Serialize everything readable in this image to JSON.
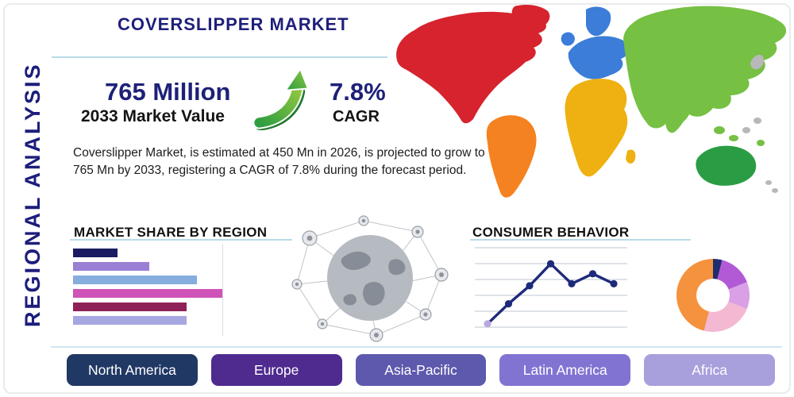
{
  "header": {
    "title": "COVERSLIPPER MARKET"
  },
  "side_label": "REGIONAL ANALYSIS",
  "stats": {
    "market_value": "765 Million",
    "market_value_label": "2033 Market Value",
    "cagr_value": "7.8%",
    "cagr_label": "CAGR"
  },
  "description": "Coverslipper Market, is estimated at 450 Mn in 2026, is projected to grow to 765 Mn by 2033, registering a CAGR of 7.8% during the forecast period.",
  "sections": {
    "market_share_title": "MARKET SHARE BY REGION",
    "consumer_behavior_title": "CONSUMER BEHAVIOR"
  },
  "regions": [
    {
      "label": "North America",
      "color": "#203864"
    },
    {
      "label": "Europe",
      "color": "#4f2a8f"
    },
    {
      "label": "Asia-Pacific",
      "color": "#5d59ad"
    },
    {
      "label": "Latin America",
      "color": "#8173d2"
    },
    {
      "label": "Africa",
      "color": "#a89fdd"
    }
  ],
  "map": {
    "colors": {
      "north-america": "#d6232e",
      "greenland": "#d6232e",
      "south-america": "#f58220",
      "europe": "#3b7dd8",
      "uk": "#3b7dd8",
      "scandinavia": "#3b7dd8",
      "africa": "#eeb111",
      "madagascar": "#eeb111",
      "middle-east": "#b8b8b8",
      "asia": "#76c043",
      "india": "#76c043",
      "australia": "#2a9d44",
      "islands-gray": "#b8b8b8",
      "islands-green": "#76c043"
    }
  },
  "chart_data": [
    {
      "type": "bar",
      "title": "MARKET SHARE BY REGION",
      "orientation": "horizontal",
      "category_labels_visible": false,
      "values_percent_of_max": [
        30,
        51,
        83,
        100,
        76,
        76
      ],
      "colors": [
        "#1b1b62",
        "#9b7fd4",
        "#85aede",
        "#cf52b8",
        "#8e2157",
        "#a6a6e0"
      ]
    },
    {
      "type": "line",
      "title": "CONSUMER BEHAVIOR",
      "values": [
        5,
        35,
        62,
        95,
        65,
        80,
        65
      ],
      "gridlines": 6,
      "line_color": "#1e2a7a",
      "marker_color": "#1e2a7a",
      "first_marker_color": "#b7a8e0"
    },
    {
      "type": "pie",
      "style": "donut",
      "slices": [
        {
          "value": 4,
          "color": "#1f2d6e"
        },
        {
          "value": 15,
          "color": "#b25ad6"
        },
        {
          "value": 12,
          "color": "#d9a0e6"
        },
        {
          "value": 23,
          "color": "#f4b8d2"
        },
        {
          "value": 46,
          "color": "#f5923e"
        }
      ]
    }
  ]
}
